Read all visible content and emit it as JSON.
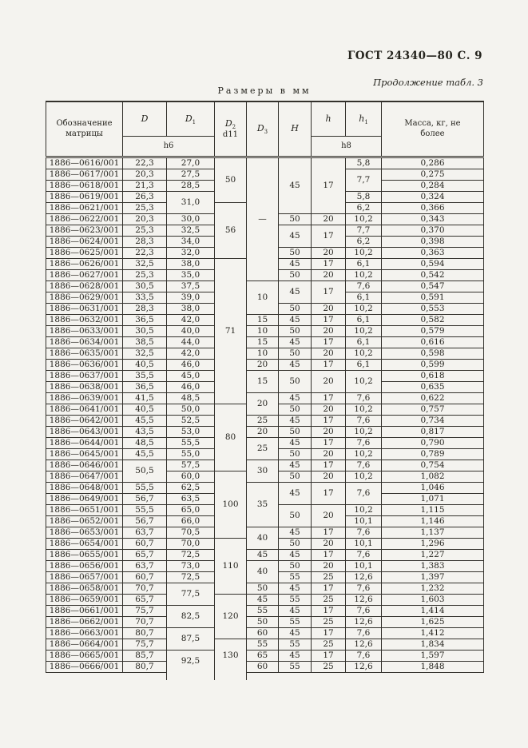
{
  "page": {
    "gost_header": "ГОСТ 24340—80 С. 9",
    "continuation_note": "Продолжение табл. 3",
    "units_title": "Размеры в мм"
  },
  "table": {
    "header": {
      "designation": "Обозначение матрицы",
      "d_label": "D",
      "d1_label": "D",
      "d1_sub": "1",
      "d2_label": "D",
      "d2_sub": "2",
      "d2_tol": "d11",
      "d3_label": "D",
      "d3_sub": "3",
      "h_cap_label": "H",
      "h_label": "h",
      "h1_label": "h",
      "h1_sub": "1",
      "mass_label": "Масса, кг, не более",
      "tol_h6": "h6",
      "tol_h8": "h8"
    },
    "columns": [
      "Обозначение матрицы",
      "D",
      "D1",
      "D2 d11",
      "D3",
      "H",
      "h",
      "h1",
      "Масса, кг, не более"
    ],
    "rows": [
      [
        "1886—0616/001",
        "22,3",
        "27,0",
        {
          "v": "50",
          "rs": 4
        },
        {
          "v": "—",
          "rs": 11
        },
        {
          "v": "45",
          "rs": 5
        },
        {
          "v": "17",
          "rs": 5
        },
        "5,8",
        "0,286"
      ],
      [
        "1886—0617/001",
        "20,3",
        "27,5",
        {
          "v": "7,7",
          "rs": 2
        },
        "0,275"
      ],
      [
        "1886—0618/001",
        "21,3",
        "28,5",
        "0,284"
      ],
      [
        "1886—0619/001",
        "26,3",
        {
          "v": "31,0",
          "rs": 2
        },
        "5,8",
        "0,324"
      ],
      [
        "1886—0621/001",
        "25,3",
        {
          "v": "56",
          "rs": 5
        },
        "6,2",
        "0,366"
      ],
      [
        "1886—0622/001",
        "20,3",
        "30,0",
        "50",
        "20",
        "10,2",
        "0,343"
      ],
      [
        "1886—0623/001",
        "25,3",
        "32,5",
        {
          "v": "45",
          "rs": 2
        },
        {
          "v": "17",
          "rs": 2
        },
        "7,7",
        "0,370"
      ],
      [
        "1886—0624/001",
        "28,3",
        "34,0",
        "6,2",
        "0,398"
      ],
      [
        "1886—0625/001",
        "22,3",
        "32,0",
        "50",
        "20",
        "10,2",
        "0,363"
      ],
      [
        "1886—0626/001",
        "32,5",
        "38,0",
        {
          "v": "71",
          "rs": 13
        },
        "45",
        "17",
        "6,1",
        "0,594"
      ],
      [
        "1886—0627/001",
        "25,3",
        "35,0",
        "50",
        "20",
        "10,2",
        "0,542"
      ],
      [
        "1886—0628/001",
        "30,5",
        "37,5",
        {
          "v": "10",
          "rs": 3
        },
        {
          "v": "45",
          "rs": 2
        },
        {
          "v": "17",
          "rs": 2
        },
        "7,6",
        "0,547"
      ],
      [
        "1886—0629/001",
        "33,5",
        "39,0",
        "6,1",
        "0,591"
      ],
      [
        "1886—0631/001",
        "28,3",
        "38,0",
        "50",
        "20",
        "10,2",
        "0,553"
      ],
      [
        "1886—0632/001",
        "36,5",
        "42,0",
        "15",
        "45",
        "17",
        "6,1",
        "0,582"
      ],
      [
        "1886—0633/001",
        "30,5",
        "40,0",
        "10",
        "50",
        "20",
        "10,2",
        "0,579"
      ],
      [
        "1886—0634/001",
        "38,5",
        "44,0",
        "15",
        "45",
        "17",
        "6,1",
        "0,616"
      ],
      [
        "1886—0635/001",
        "32,5",
        "42,0",
        "10",
        "50",
        "20",
        "10,2",
        "0,598"
      ],
      [
        "1886—0636/001",
        "40,5",
        "46,0",
        "20",
        "45",
        "17",
        "6,1",
        "0,599"
      ],
      [
        "1886—0637/001",
        "35,5",
        "45,0",
        {
          "v": "15",
          "rs": 2
        },
        {
          "v": "50",
          "rs": 2
        },
        {
          "v": "20",
          "rs": 2
        },
        {
          "v": "10,2",
          "rs": 2
        },
        "0,618"
      ],
      [
        "1886—0638/001",
        "36,5",
        "46,0",
        "0,635"
      ],
      [
        "1886—0639/001",
        "41,5",
        "48,5",
        {
          "v": "20",
          "rs": 2
        },
        "45",
        "17",
        "7,6",
        "0,622"
      ],
      [
        "1886—0641/001",
        "40,5",
        "50,0",
        {
          "v": "80",
          "rs": 6
        },
        "50",
        "20",
        "10,2",
        "0,757"
      ],
      [
        "1886—0642/001",
        "45,5",
        "52,5",
        "25",
        "45",
        "17",
        "7,6",
        "0,734"
      ],
      [
        "1886—0643/001",
        "43,5",
        "53,0",
        "20",
        "50",
        "20",
        "10,2",
        "0,817"
      ],
      [
        "1886—0644/001",
        "48,5",
        "55,5",
        {
          "v": "25",
          "rs": 2
        },
        "45",
        "17",
        "7,6",
        "0,790"
      ],
      [
        "1886—0645/001",
        "45,5",
        "55,0",
        "50",
        "20",
        "10,2",
        "0,789"
      ],
      [
        "1886—0646/001",
        {
          "v": "50,5",
          "rs": 2
        },
        "57,5",
        {
          "v": "30",
          "rs": 2
        },
        "45",
        "17",
        "7,6",
        "0,754"
      ],
      [
        "1886—0647/001",
        "60,0",
        {
          "v": "100",
          "rs": 6
        },
        "50",
        "20",
        "10,2",
        "1,082"
      ],
      [
        "1886—0648/001",
        "55,5",
        "62,5",
        {
          "v": "35",
          "rs": 4
        },
        {
          "v": "45",
          "rs": 2
        },
        {
          "v": "17",
          "rs": 2
        },
        {
          "v": "7,6",
          "rs": 2
        },
        "1,046"
      ],
      [
        "1886—0649/001",
        "56,7",
        "63,5",
        "1,071"
      ],
      [
        "1886—0651/001",
        "55,5",
        "65,0",
        {
          "v": "50",
          "rs": 2
        },
        {
          "v": "20",
          "rs": 2
        },
        "10,2",
        "1,115"
      ],
      [
        "1886—0652/001",
        "56,7",
        "66,0",
        "10,1",
        "1,146"
      ],
      [
        "1886—0653/001",
        "63,7",
        "70,5",
        {
          "v": "40",
          "rs": 2
        },
        "45",
        "17",
        "7,6",
        "1,137"
      ],
      [
        "1886—0654/001",
        "60,7",
        "70,0",
        {
          "v": "110",
          "rs": 5
        },
        "50",
        "20",
        "10,1",
        "1,296"
      ],
      [
        "1886—0655/001",
        "65,7",
        "72,5",
        "45",
        "45",
        "17",
        "7,6",
        "1,227"
      ],
      [
        "1886—0656/001",
        "63,7",
        "73,0",
        {
          "v": "40",
          "rs": 2
        },
        "50",
        "20",
        "10,1",
        "1,383"
      ],
      [
        "1886—0657/001",
        "60,7",
        "72,5",
        "55",
        "25",
        "12,6",
        "1,397"
      ],
      [
        "1886—0658/001",
        "70,7",
        {
          "v": "77,5",
          "rs": 2
        },
        "50",
        "45",
        "17",
        "7,6",
        "1,232"
      ],
      [
        "1886—0659/001",
        "65,7",
        {
          "v": "120",
          "rs": 4
        },
        "45",
        "55",
        "25",
        "12,6",
        "1,603"
      ],
      [
        "1886—0661/001",
        "75,7",
        {
          "v": "82,5",
          "rs": 2
        },
        "55",
        "45",
        "17",
        "7,6",
        "1,414"
      ],
      [
        "1886—0662/001",
        "70,7",
        "50",
        "55",
        "25",
        "12,6",
        "1,625"
      ],
      [
        "1886—0663/001",
        "80,7",
        {
          "v": "87,5",
          "rs": 2
        },
        "60",
        "45",
        "17",
        "7,6",
        "1,412"
      ],
      [
        "1886—0664/001",
        "75,7",
        {
          "v": "130",
          "rs": 3,
          "open": true
        },
        "55",
        "55",
        "25",
        "12,6",
        "1,834"
      ],
      [
        "1886—0665/001",
        "85,7",
        {
          "v": "92,5",
          "rs": 2,
          "open": true
        },
        "65",
        "45",
        "17",
        "7,6",
        "1,597"
      ],
      [
        "1886—0666/001",
        "80,7",
        "60",
        "55",
        "25",
        "12,6",
        "1,848"
      ]
    ]
  }
}
